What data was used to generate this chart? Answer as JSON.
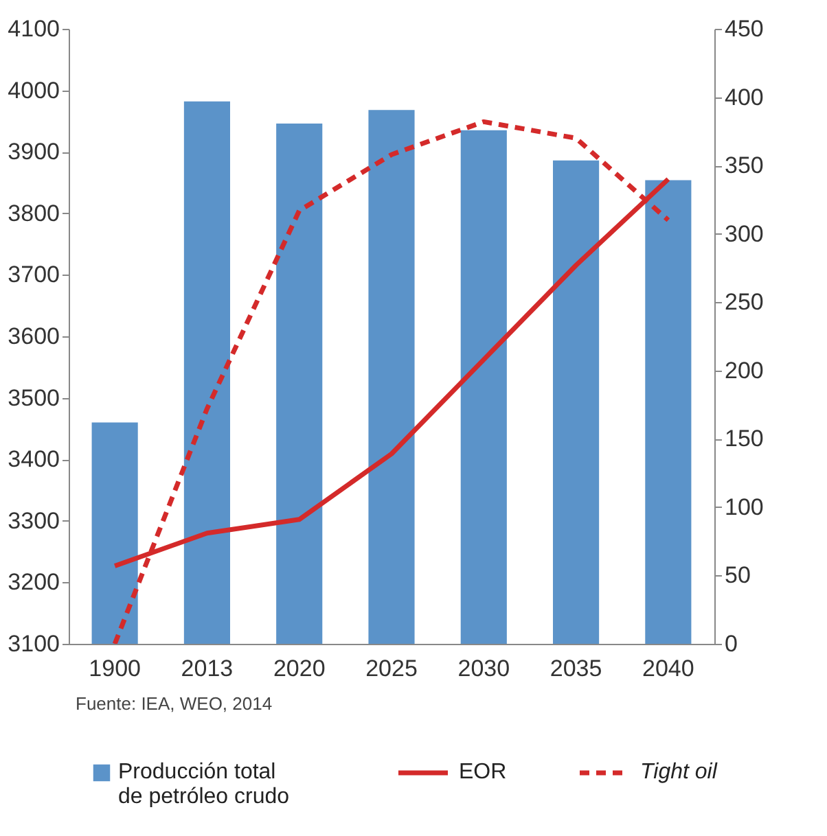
{
  "chart_data": {
    "type": "bar",
    "categories": [
      "1900",
      "2013",
      "2020",
      "2025",
      "2030",
      "2035",
      "2040"
    ],
    "series": [
      {
        "name": "Producción total de petróleo crudo",
        "color": "#5b93c9",
        "values": [
          3460,
          3982,
          3946,
          3968,
          3935,
          3886,
          3854
        ]
      },
      {
        "name": "EOR",
        "type": "line",
        "axis": "y2",
        "color": "#d42a2a",
        "line_style": "solid",
        "values": [
          57,
          81,
          91,
          139,
          208,
          277,
          340
        ]
      },
      {
        "name": "Tight oil",
        "type": "line",
        "axis": "y2",
        "color": "#d42a2a",
        "line_style": "dashed",
        "values": [
          0,
          172,
          317,
          358,
          382,
          370,
          310
        ]
      }
    ],
    "ylim": [
      3100,
      4100
    ],
    "yticks": [
      3100,
      3200,
      3300,
      3400,
      3500,
      3600,
      3700,
      3800,
      3900,
      4000,
      4100
    ],
    "y2lim": [
      0,
      450
    ],
    "y2ticks": [
      0,
      50,
      100,
      150,
      200,
      250,
      300,
      350,
      400,
      450
    ],
    "grid": false,
    "legend": "bottom",
    "annotations": [
      "Fuente: IEA, WEO, 2014"
    ]
  }
}
